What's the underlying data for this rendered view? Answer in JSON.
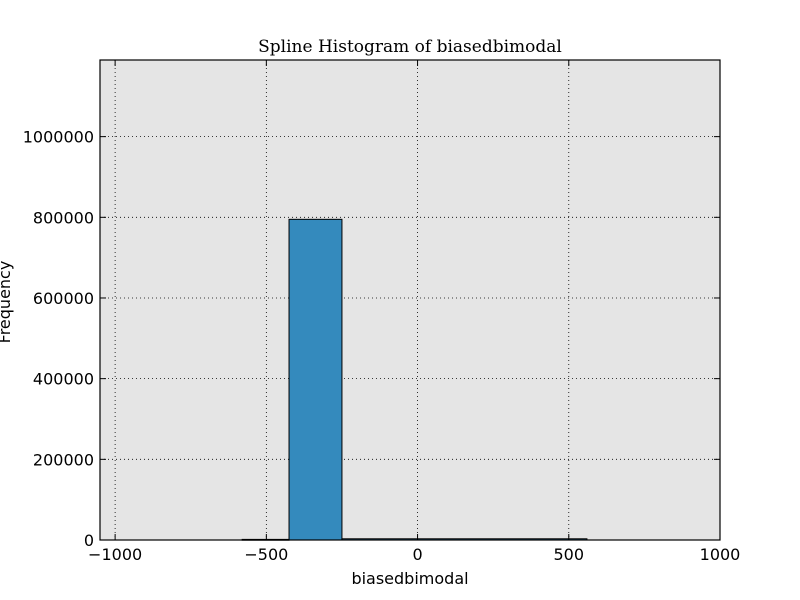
{
  "chart_data": {
    "type": "bar",
    "title": "Spline Histogram of biasedbimodal",
    "xlabel": "biasedbimodal",
    "ylabel": "Frequency",
    "xlim": [
      -1050,
      1000
    ],
    "ylim": [
      0,
      1190000
    ],
    "xticks": [
      -1000,
      -500,
      0,
      500,
      1000
    ],
    "xtick_labels": [
      "−1000",
      "−500",
      "0",
      "500",
      "1000"
    ],
    "yticks": [
      0,
      200000,
      400000,
      600000,
      800000,
      1000000
    ],
    "ytick_labels": [
      "0",
      "200000",
      "400000",
      "600000",
      "800000",
      "1000000"
    ],
    "grid": true,
    "plot_background": "#e5e5e5",
    "bar_color": "#348abd",
    "bins": [
      {
        "x0": -425,
        "x1": -250,
        "value": 795000
      },
      {
        "x0": -250,
        "x1": 560,
        "value": 3000
      },
      {
        "x0": -580,
        "x1": -425,
        "value": 1500
      }
    ]
  }
}
